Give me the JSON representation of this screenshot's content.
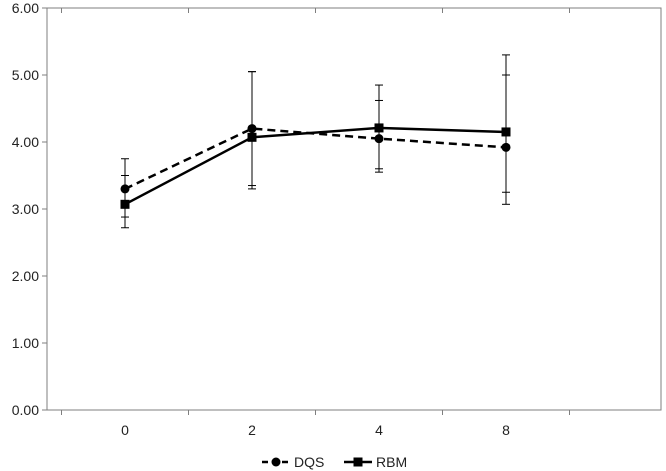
{
  "chart_data": {
    "type": "line",
    "title": "",
    "xlabel": "",
    "ylabel": "",
    "categories": [
      "0",
      "2",
      "4",
      "8"
    ],
    "y_ticks": [
      "0.00",
      "1.00",
      "2.00",
      "3.00",
      "4.00",
      "5.00",
      "6.00"
    ],
    "ylim": [
      0,
      6
    ],
    "grid": false,
    "legend_position": "bottom",
    "series": [
      {
        "name": "DQS",
        "line_style": "dashed",
        "marker": "circle",
        "color": "#000000",
        "values": [
          3.3,
          4.2,
          4.05,
          3.92
        ],
        "error_low": [
          2.88,
          3.35,
          3.55,
          3.07
        ],
        "error_high": [
          3.75,
          5.05,
          4.62,
          5.0
        ]
      },
      {
        "name": "RBM",
        "line_style": "solid",
        "marker": "square",
        "color": "#000000",
        "values": [
          3.07,
          4.07,
          4.21,
          4.15
        ],
        "error_low": [
          2.72,
          3.3,
          3.6,
          3.25
        ],
        "error_high": [
          3.5,
          5.05,
          4.85,
          5.3
        ]
      }
    ]
  }
}
